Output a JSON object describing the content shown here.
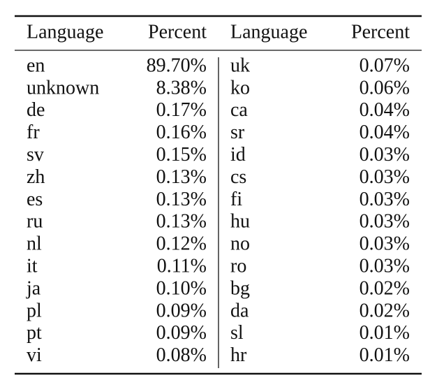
{
  "table": {
    "header": [
      "Language",
      "Percent",
      "Language",
      "Percent"
    ],
    "rows": [
      [
        "en",
        "89.70%",
        "uk",
        "0.07%"
      ],
      [
        "unknown",
        "8.38%",
        "ko",
        "0.06%"
      ],
      [
        "de",
        "0.17%",
        "ca",
        "0.04%"
      ],
      [
        "fr",
        "0.16%",
        "sr",
        "0.04%"
      ],
      [
        "sv",
        "0.15%",
        "id",
        "0.03%"
      ],
      [
        "zh",
        "0.13%",
        "cs",
        "0.03%"
      ],
      [
        "es",
        "0.13%",
        "fi",
        "0.03%"
      ],
      [
        "ru",
        "0.13%",
        "hu",
        "0.03%"
      ],
      [
        "nl",
        "0.12%",
        "no",
        "0.03%"
      ],
      [
        "it",
        "0.11%",
        "ro",
        "0.03%"
      ],
      [
        "ja",
        "0.10%",
        "bg",
        "0.02%"
      ],
      [
        "pl",
        "0.09%",
        "da",
        "0.02%"
      ],
      [
        "pt",
        "0.09%",
        "sl",
        "0.01%"
      ],
      [
        "vi",
        "0.08%",
        "hr",
        "0.01%"
      ]
    ]
  }
}
